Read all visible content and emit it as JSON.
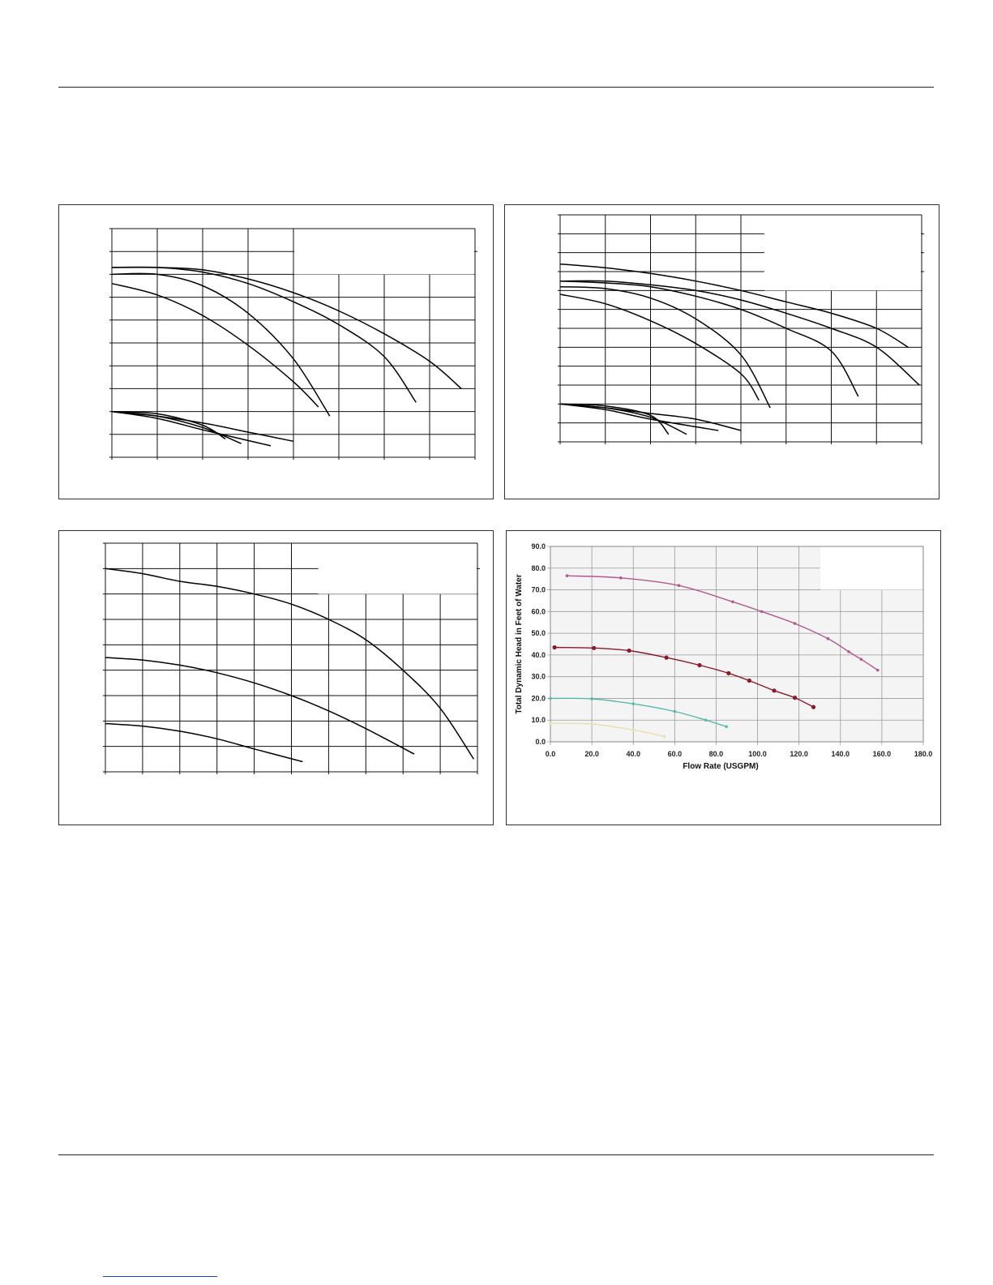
{
  "charts": [
    {
      "type": "line",
      "chart_data": {
        "type": "line",
        "series": [
          {
            "x": [
              0,
              1,
              2,
              3,
              4,
              5,
              6,
              7,
              7.7
            ],
            "values": [
              8.3,
              8.3,
              8.2,
              7.8,
              7.2,
              6.4,
              5.4,
              4.2,
              3.0
            ]
          },
          {
            "x": [
              0,
              1,
              2,
              3,
              4,
              5,
              6,
              6.7
            ],
            "values": [
              8.3,
              8.3,
              8.1,
              7.6,
              6.8,
              5.8,
              4.4,
              2.4
            ]
          },
          {
            "x": [
              0,
              1,
              2,
              3,
              4,
              4.8
            ],
            "values": [
              8.0,
              8.0,
              7.5,
              6.3,
              4.3,
              1.8
            ]
          },
          {
            "x": [
              0,
              1,
              2,
              3,
              4,
              4.55
            ],
            "values": [
              7.6,
              7.1,
              6.2,
              4.9,
              3.3,
              2.2
            ]
          },
          {
            "x": [
              0,
              1,
              2,
              2.5
            ],
            "values": [
              2.0,
              1.9,
              1.4,
              0.8
            ]
          },
          {
            "x": [
              0,
              1,
              2,
              2.85
            ],
            "values": [
              2.0,
              1.8,
              1.3,
              0.6
            ]
          },
          {
            "x": [
              0,
              1,
              2,
              3.5
            ],
            "values": [
              2.0,
              1.7,
              1.2,
              0.5
            ]
          },
          {
            "x": [
              0,
              1,
              2,
              3,
              4
            ],
            "values": [
              2.0,
              1.8,
              1.5,
              1.1,
              0.7
            ]
          }
        ],
        "xlim": [
          0,
          8
        ],
        "ylim": [
          0,
          10
        ],
        "grid": true
      }
    },
    {
      "type": "line",
      "chart_data": {
        "type": "line",
        "series": [
          {
            "x": [
              0,
              1,
              2,
              3,
              4,
              5,
              6,
              7,
              7.7
            ],
            "values": [
              9.4,
              9.2,
              8.9,
              8.5,
              8.0,
              7.4,
              6.8,
              6.0,
              5.0
            ]
          },
          {
            "x": [
              0,
              1,
              2,
              3,
              4,
              5,
              6,
              7,
              7.95
            ],
            "values": [
              8.5,
              8.5,
              8.3,
              8.0,
              7.5,
              6.8,
              6.0,
              5.0,
              3.0
            ]
          },
          {
            "x": [
              0,
              1,
              2,
              3,
              4,
              5,
              6,
              6.6
            ],
            "values": [
              8.5,
              8.4,
              8.2,
              7.7,
              7.0,
              6.0,
              4.8,
              2.4
            ]
          },
          {
            "x": [
              0,
              1,
              2,
              3,
              4,
              4.65
            ],
            "values": [
              8.2,
              8.1,
              7.6,
              6.5,
              4.6,
              1.8
            ]
          },
          {
            "x": [
              0,
              1,
              2,
              3,
              4,
              4.4
            ],
            "values": [
              7.8,
              7.3,
              6.4,
              5.2,
              3.6,
              2.2
            ]
          },
          {
            "x": [
              0,
              1,
              2,
              2.4
            ],
            "values": [
              2.0,
              1.9,
              1.4,
              0.4
            ]
          },
          {
            "x": [
              0,
              1,
              2,
              2.8
            ],
            "values": [
              2.0,
              1.8,
              1.3,
              0.4
            ]
          },
          {
            "x": [
              0,
              1,
              2,
              3.5
            ],
            "values": [
              2.0,
              1.7,
              1.2,
              0.6
            ]
          },
          {
            "x": [
              0,
              1,
              2,
              3,
              4
            ],
            "values": [
              2.0,
              1.8,
              1.5,
              1.2,
              0.6
            ]
          }
        ],
        "xlim": [
          0,
          8
        ],
        "ylim": [
          0,
          12
        ],
        "grid": true
      }
    },
    {
      "type": "line",
      "chart_data": {
        "type": "line",
        "series": [
          {
            "x": [
              0,
              1,
              2,
              3,
              4,
              5,
              6,
              7,
              8,
              9,
              9.9
            ],
            "values": [
              8.0,
              7.8,
              7.5,
              7.3,
              7.0,
              6.6,
              6.0,
              5.2,
              4.0,
              2.5,
              0.5
            ]
          },
          {
            "x": [
              0,
              1,
              2,
              3,
              4,
              5,
              6,
              7,
              8.3
            ],
            "values": [
              4.5,
              4.4,
              4.2,
              3.9,
              3.5,
              3.0,
              2.4,
              1.7,
              0.7
            ]
          },
          {
            "x": [
              0,
              1,
              2,
              3,
              4,
              5.3
            ],
            "values": [
              1.9,
              1.8,
              1.6,
              1.3,
              0.9,
              0.4
            ]
          }
        ],
        "xlim": [
          0,
          10
        ],
        "ylim": [
          0,
          9
        ],
        "grid": true
      }
    },
    {
      "type": "line",
      "chart_data": {
        "type": "line",
        "xlabel": "Flow Rate (USGPM)",
        "ylabel": "Total Dynamic Head in Feet of Water",
        "x_ticks": [
          "0.0",
          "20.0",
          "40.0",
          "60.0",
          "80.0",
          "100.0",
          "120.0",
          "140.0",
          "160.0",
          "180.0"
        ],
        "y_ticks": [
          "0.0",
          "10.0",
          "20.0",
          "30.0",
          "40.0",
          "50.0",
          "60.0",
          "70.0",
          "80.0",
          "90.0"
        ],
        "xlim": [
          0,
          180
        ],
        "ylim": [
          0,
          90
        ],
        "grid": true,
        "series": [
          {
            "color": "#b05a8a",
            "x": [
              8,
              34,
              62,
              88,
              102,
              118,
              134,
              144,
              150,
              158
            ],
            "values": [
              76.5,
              75.5,
              72,
              64.5,
              60,
              54.5,
              47.5,
              41.5,
              38,
              33
            ]
          },
          {
            "color": "#8b1a2a",
            "x": [
              2,
              21,
              38,
              56,
              72,
              86,
              96,
              108,
              118,
              127
            ],
            "values": [
              43.5,
              43.2,
              42,
              38.8,
              35.3,
              31.6,
              28.2,
              23.6,
              20.3,
              16
            ]
          },
          {
            "color": "#5cb8a8",
            "x": [
              0,
              20,
              40,
              60,
              75,
              85
            ],
            "values": [
              20,
              19.8,
              17.5,
              14,
              10,
              7
            ]
          },
          {
            "color": "#e8dfb0",
            "x": [
              0,
              20,
              40,
              55
            ],
            "values": [
              8.5,
              8.2,
              5.5,
              2.5
            ]
          }
        ]
      }
    }
  ]
}
